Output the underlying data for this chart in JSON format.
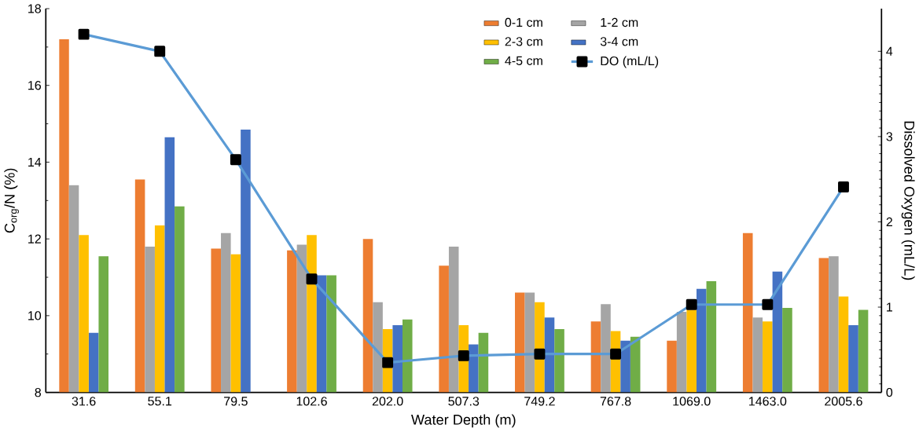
{
  "chart_data": {
    "type": "bar",
    "xlabel": "Water Depth (m)",
    "ylabel": "C$_{org}$/N (%)",
    "y2label": "Dissolved Oxygen (mL/L)",
    "categories": [
      "31.6",
      "55.1",
      "79.5",
      "102.6",
      "202.0",
      "507.3",
      "749.2",
      "767.8",
      "1069.0",
      "1463.0",
      "2005.6"
    ],
    "ylim": [
      8,
      18
    ],
    "yticks": [
      8,
      10,
      12,
      14,
      16,
      18
    ],
    "y2lim": [
      0,
      4.5
    ],
    "y2ticks": [
      0,
      1,
      2,
      3,
      4
    ],
    "legend": "top",
    "grid": false,
    "series": [
      {
        "name": "0-1 cm",
        "color": "#ed7d31",
        "values": [
          17.2,
          13.55,
          11.75,
          11.7,
          12.0,
          11.3,
          10.6,
          9.85,
          9.35,
          12.15,
          11.5
        ]
      },
      {
        "name": "1-2 cm",
        "color": "#a5a5a5",
        "values": [
          13.4,
          11.8,
          12.15,
          11.85,
          10.35,
          11.8,
          10.6,
          10.3,
          10.1,
          9.95,
          11.55
        ]
      },
      {
        "name": "2-3 cm",
        "color": "#ffc000",
        "values": [
          12.1,
          12.35,
          11.6,
          12.1,
          9.65,
          9.75,
          10.35,
          9.6,
          10.15,
          9.85,
          10.5
        ]
      },
      {
        "name": "3-4 cm",
        "color": "#4472c4",
        "values": [
          9.55,
          14.65,
          14.85,
          11.05,
          9.75,
          9.25,
          9.95,
          9.35,
          10.7,
          11.15,
          9.75
        ]
      },
      {
        "name": "4-5 cm",
        "color": "#70ad47",
        "values": [
          11.55,
          12.85,
          null,
          11.05,
          9.9,
          9.55,
          9.65,
          9.45,
          10.9,
          10.2,
          10.15
        ]
      },
      {
        "name": "DO (mL/L)",
        "type": "line",
        "axis": "y2",
        "color": "#5b9bd5",
        "marker": "square",
        "line_style": "solid",
        "values": [
          4.2,
          4.0,
          2.73,
          1.33,
          0.35,
          0.43,
          0.45,
          0.45,
          1.03,
          1.03,
          2.41
        ]
      }
    ]
  }
}
